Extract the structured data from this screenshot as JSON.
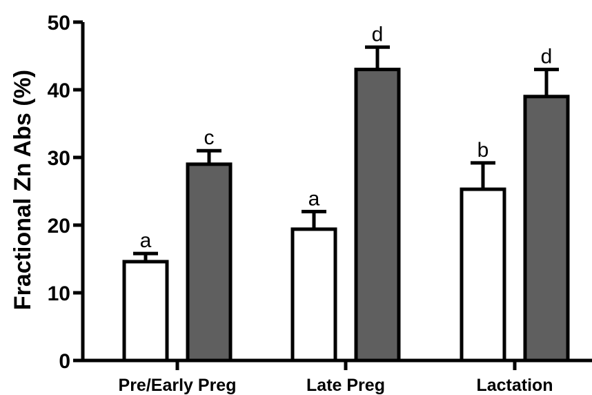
{
  "chart_data": {
    "type": "bar",
    "title": "",
    "xlabel": "",
    "ylabel": "Fractional Zn Abs (%)",
    "ylim": [
      0,
      50
    ],
    "yticks": [
      "0",
      "10",
      "20",
      "30",
      "40",
      "50"
    ],
    "categories": [
      "Pre/Early Preg",
      "Late Preg",
      "Lactation"
    ],
    "grid": false,
    "legend": "none",
    "series": [
      {
        "color": "#ffffff",
        "values": [
          14.6,
          19.4,
          25.3
        ],
        "error": [
          1.2,
          2.6,
          3.9
        ],
        "labels": [
          "a",
          "a",
          "b"
        ]
      },
      {
        "color": "#5f5f5f",
        "values": [
          29.0,
          43.0,
          39.0
        ],
        "error": [
          2.0,
          3.3,
          4.0
        ],
        "labels": [
          "c",
          "d",
          "d"
        ]
      }
    ]
  }
}
